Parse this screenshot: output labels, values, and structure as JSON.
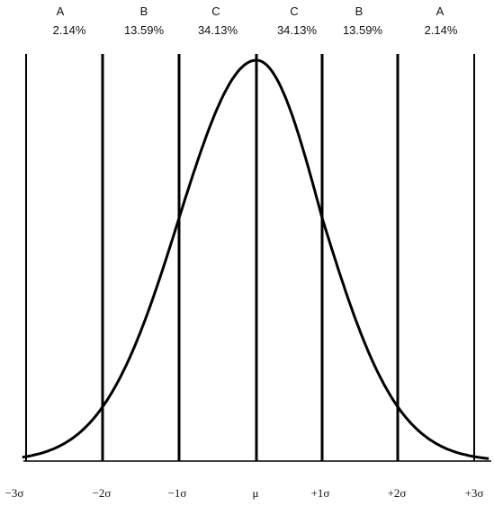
{
  "regions": [
    {
      "letter": "A",
      "percent": "2.14%"
    },
    {
      "letter": "B",
      "percent": "13.59%"
    },
    {
      "letter": "C",
      "percent": "34.13%"
    },
    {
      "letter": "C",
      "percent": "34.13%"
    },
    {
      "letter": "B",
      "percent": "13.59%"
    },
    {
      "letter": "A",
      "percent": "2.14%"
    }
  ],
  "axis_labels": [
    "−3σ",
    "−2σ",
    "−1σ",
    "μ",
    "+1σ",
    "+2σ",
    "+3σ"
  ]
}
